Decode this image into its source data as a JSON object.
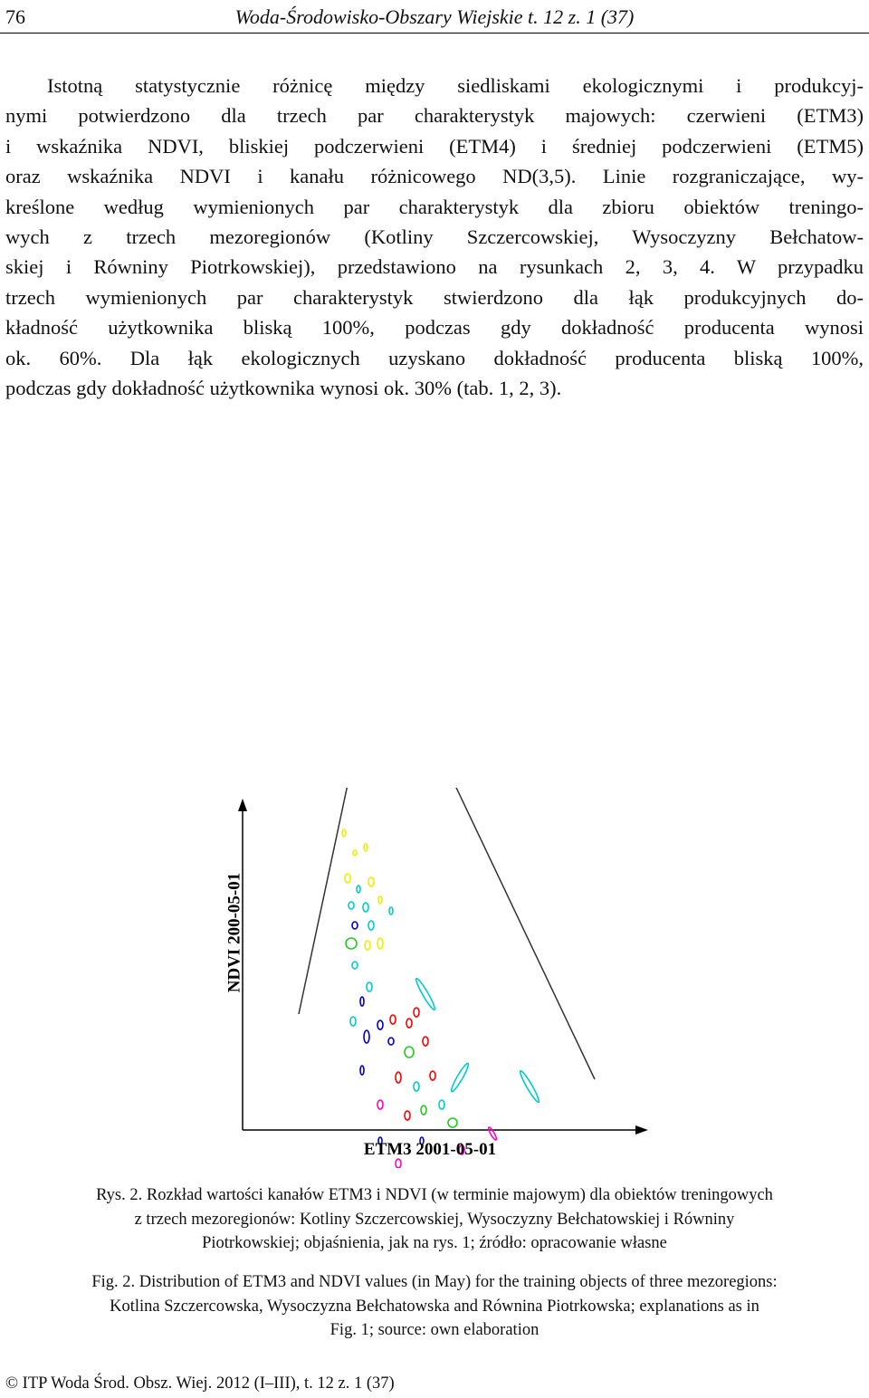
{
  "header": {
    "page_number": "76",
    "journal": "Woda-Środowisko-Obszary Wiejskie t. 12 z. 1 (37)"
  },
  "body": {
    "lines": [
      "Istotną statystycznie różnicę między siedliskami ekologicznymi i produkcyj-",
      "nymi potwierdzono dla trzech par charakterystyk majowych: czerwieni (ETM3)",
      "i wskaźnika NDVI, bliskiej podczerwieni (ETM4) i średniej podczerwieni (ETM5)",
      "oraz wskaźnika NDVI i kanału różnicowego ND(3,5). Linie rozgraniczające, wy-",
      "kreślone według wymienionych par charakterystyk dla zbioru obiektów treningo-",
      "wych z trzech mezoregionów (Kotliny Szczercowskiej, Wysoczyzny Bełchatow-",
      "skiej i Równiny Piotrkowskiej), przedstawiono na rysunkach 2, 3, 4. W przypadku",
      "trzech wymienionych par charakterystyk stwierdzono dla łąk produkcyjnych do-",
      "kładność użytkownika bliską 100%, podczas gdy dokładność producenta wynosi",
      "ok. 60%. Dla łąk ekologicznych uzyskano dokładność producenta bliską 100%,",
      "podczas gdy dokładność użytkownika wynosi ok. 30% (tab. 1, 2, 3)."
    ]
  },
  "figure": {
    "y_axis_label": "NDVI 200-05-01",
    "x_axis_label": "ETM3 2001-05-01"
  },
  "caption_pl": {
    "lines": [
      "Rys. 2. Rozkład wartości kanałów ETM3 i NDVI (w terminie majowym) dla obiektów treningowych",
      "z trzech mezoregionów: Kotliny Szczercowskiej, Wysoczyzny Bełchatowskiej i Równiny",
      "Piotrkowskiej; objaśnienia, jak na rys. 1; źródło: opracowanie własne"
    ]
  },
  "caption_en": {
    "lines": [
      "Fig. 2. Distribution of ETM3 and NDVI values (in May) for the training objects of three mezoregions:",
      "Kotlina Szczercowska, Wysoczyzna Bełchatowska and Równina Piotrkowska; explanations as in",
      "Fig. 1; source: own elaboration"
    ]
  },
  "footer": "© ITP Woda Środ. Obsz. Wiej. 2012 (I–III), t. 12 z. 1 (37)"
}
